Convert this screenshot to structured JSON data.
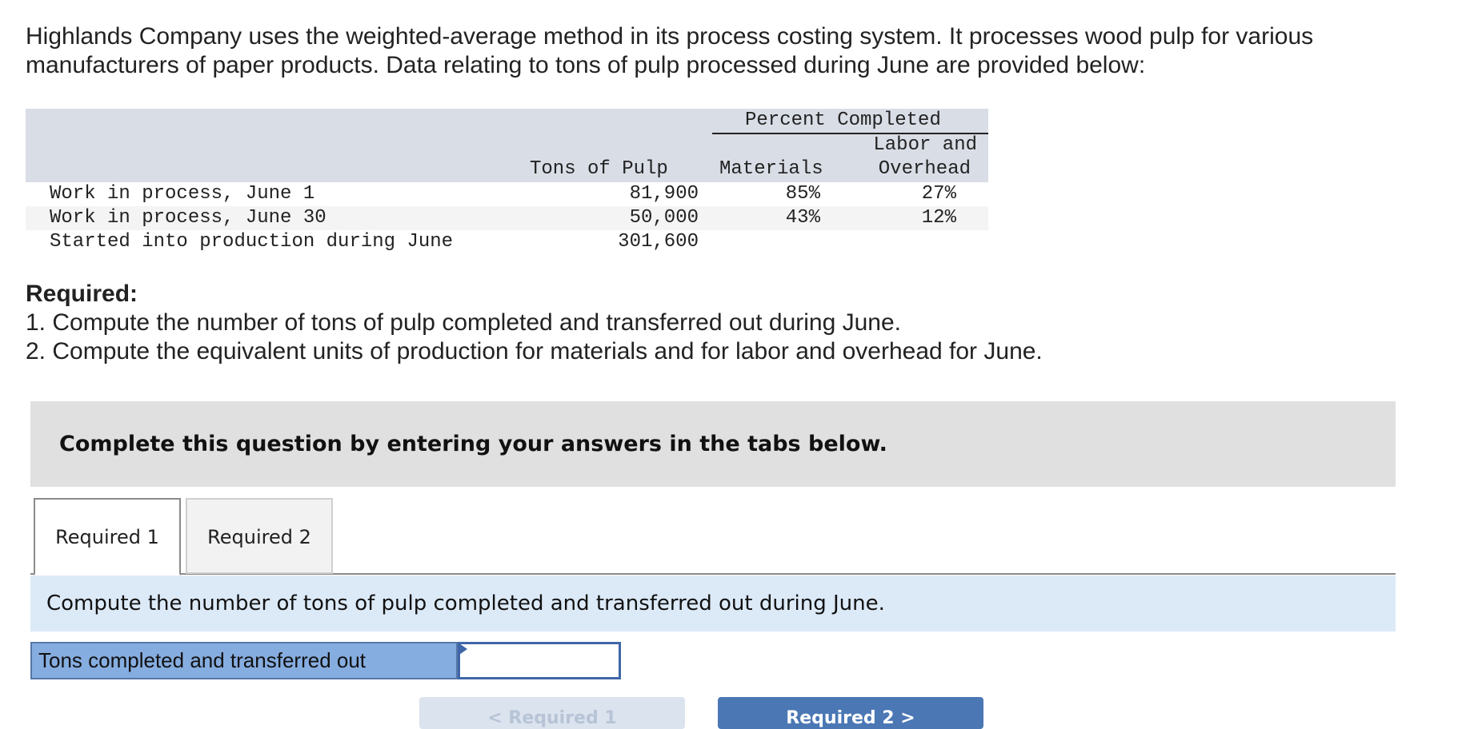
{
  "intro": "Highlands Company uses the weighted-average method in its process costing system. It processes wood pulp for various manufacturers of paper products. Data relating to tons of pulp processed during June are provided below:",
  "table": {
    "group_header": "Percent Completed",
    "col_headers": {
      "tons": "Tons of Pulp",
      "materials": "Materials",
      "labor_line1": "Labor and",
      "labor_line2": "Overhead"
    },
    "rows": [
      {
        "label": "Work in process, June 1",
        "tons": "81,900",
        "materials": "85%",
        "labor": "27%"
      },
      {
        "label": "Work in process, June 30",
        "tons": "50,000",
        "materials": "43%",
        "labor": "12%"
      },
      {
        "label": "Started into production during June",
        "tons": "301,600",
        "materials": "",
        "labor": ""
      }
    ]
  },
  "required": {
    "heading": "Required:",
    "items": [
      "1. Compute the number of tons of pulp completed and transferred out during June.",
      "2. Compute the equivalent units of production for materials and for labor and overhead for June."
    ]
  },
  "complete_banner": "Complete this question by entering your answers in the tabs below.",
  "tabs": [
    {
      "label": "Required 1",
      "active": true
    },
    {
      "label": "Required 2",
      "active": false
    }
  ],
  "instruction": "Compute the number of tons of pulp completed and transferred out during June.",
  "answer": {
    "label": "Tons completed and transferred out",
    "value": ""
  },
  "nav": {
    "prev_label": "< Required 1",
    "next_label": "Required 2 >"
  },
  "colors": {
    "table_header_bg": "#d9dde6",
    "banner_bg": "#e0e0e0",
    "instruction_bg": "#dce9f7",
    "answer_label_bg": "#86ade0",
    "next_button_bg": "#4b77b5"
  }
}
